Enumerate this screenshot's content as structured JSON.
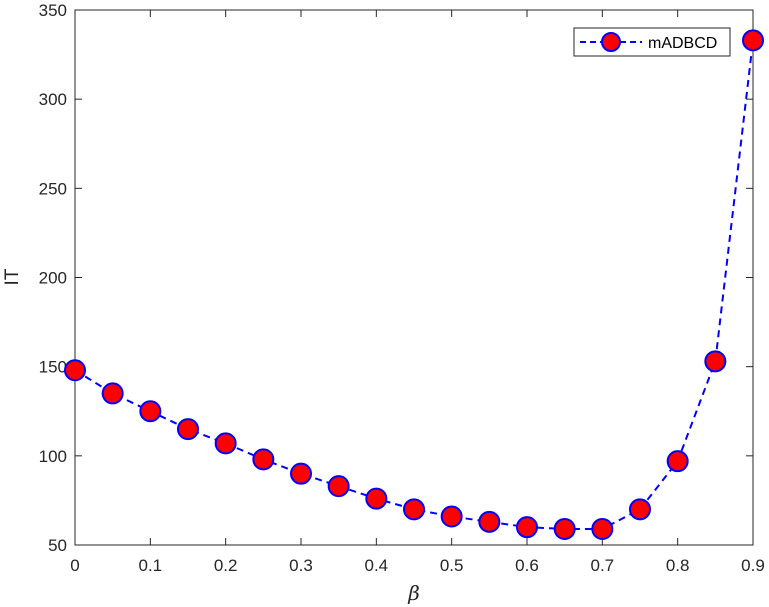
{
  "chart_data": {
    "type": "line",
    "title": "",
    "xlabel": "β",
    "ylabel": "IT",
    "xlim": [
      0,
      0.9
    ],
    "ylim": [
      50,
      350
    ],
    "xticks": [
      0,
      0.1,
      0.2,
      0.3,
      0.4,
      0.5,
      0.6,
      0.7,
      0.8,
      0.9
    ],
    "xtick_labels": [
      "0",
      "0.1",
      "0.2",
      "0.3",
      "0.4",
      "0.5",
      "0.6",
      "0.7",
      "0.8",
      "0.9"
    ],
    "yticks": [
      50,
      100,
      150,
      200,
      250,
      300,
      350
    ],
    "ytick_labels": [
      "50",
      "100",
      "150",
      "200",
      "250",
      "300",
      "350"
    ],
    "grid": false,
    "legend_position": "top-right",
    "series": [
      {
        "name": "mADBCD",
        "line_color": "#0000ff",
        "line_style": "dashed",
        "marker": "circle",
        "marker_face_color": "#ff0000",
        "marker_edge_color": "#0000ff",
        "x": [
          0,
          0.05,
          0.1,
          0.15,
          0.2,
          0.25,
          0.3,
          0.35,
          0.4,
          0.45,
          0.5,
          0.55,
          0.6,
          0.65,
          0.7,
          0.75,
          0.8,
          0.85,
          0.9
        ],
        "y": [
          148,
          135,
          125,
          115,
          107,
          98,
          90,
          83,
          76,
          70,
          66,
          63,
          60,
          59,
          59,
          70,
          97,
          153,
          333
        ]
      }
    ]
  }
}
